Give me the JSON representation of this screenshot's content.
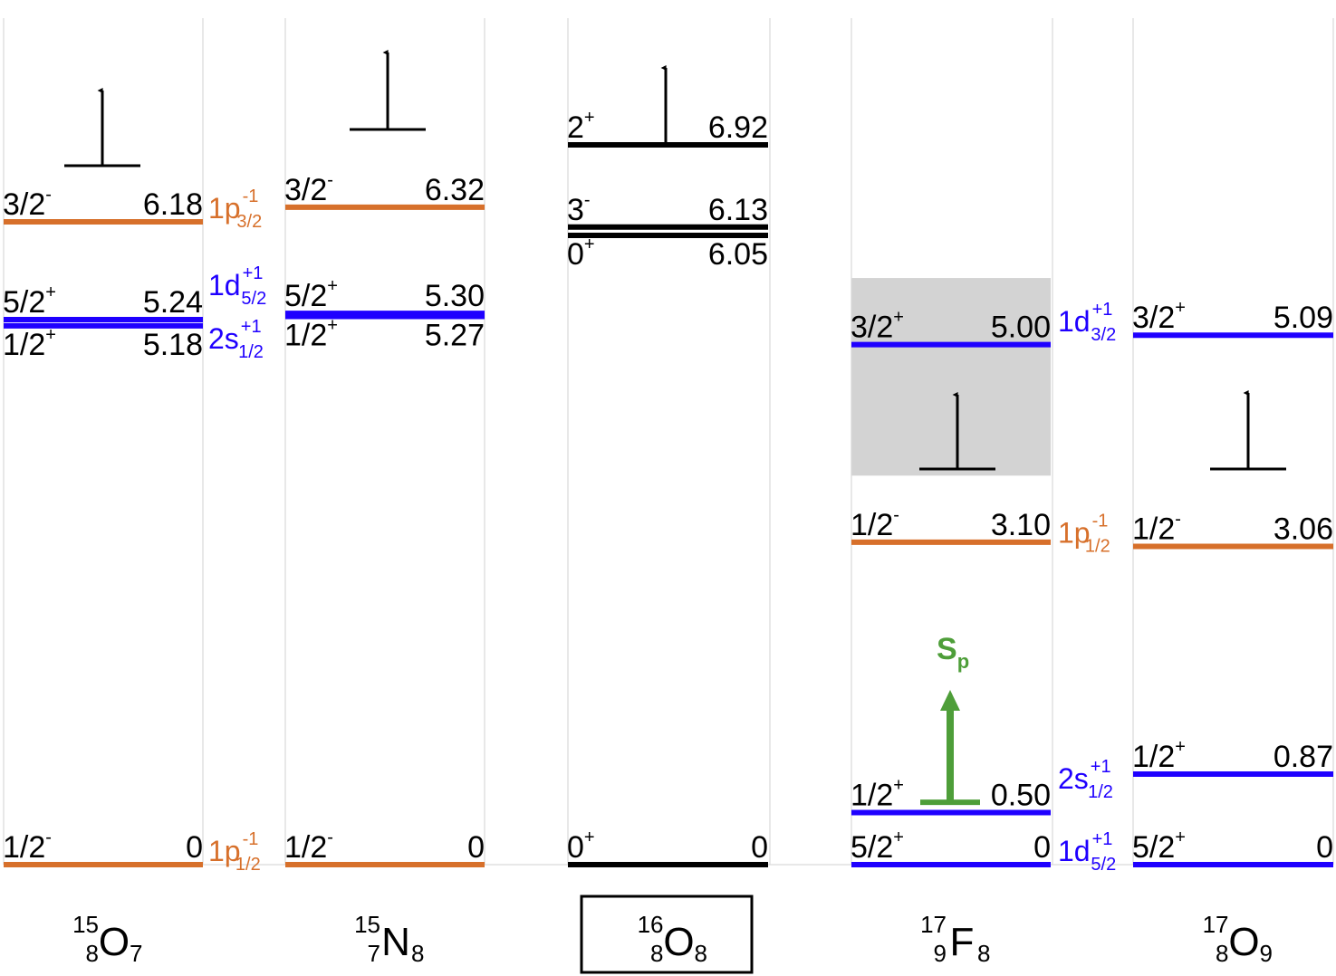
{
  "colors": {
    "particle": "#1f00ff",
    "hole": "#d7702b",
    "neutral": "#000000",
    "sp": "#4e9e39",
    "shade": "#d3d3d3",
    "grid": "#d9d9d9"
  },
  "scale": {
    "max_energy": 6.92
  },
  "panels": [
    {
      "id": "o15",
      "label": {
        "mass": "15",
        "z": "8",
        "symbol": "O",
        "n": "7"
      },
      "levels": [
        {
          "jpi_base": "1/2",
          "jpi_sup": "-",
          "energy": "0",
          "value": 0,
          "kind": "hole"
        },
        {
          "jpi_base": "1/2",
          "jpi_sup": "+",
          "energy": "5.18",
          "value": 5.18,
          "kind": "particle",
          "label_below": true
        },
        {
          "jpi_base": "5/2",
          "jpi_sup": "+",
          "energy": "5.24",
          "value": 5.24,
          "kind": "particle"
        },
        {
          "jpi_base": "3/2",
          "jpi_sup": "-",
          "energy": "6.18",
          "value": 6.18,
          "kind": "hole"
        }
      ],
      "threshold": {
        "kind": "neutral"
      }
    },
    {
      "id": "n15",
      "label": {
        "mass": "15",
        "z": "7",
        "symbol": "N",
        "n": "8"
      },
      "levels": [
        {
          "jpi_base": "1/2",
          "jpi_sup": "-",
          "energy": "0",
          "value": 0,
          "kind": "hole"
        },
        {
          "jpi_base": "1/2",
          "jpi_sup": "+",
          "energy": "5.27",
          "value": 5.27,
          "kind": "particle",
          "label_below": true
        },
        {
          "jpi_base": "5/2",
          "jpi_sup": "+",
          "energy": "5.30",
          "value": 5.3,
          "kind": "particle"
        },
        {
          "jpi_base": "3/2",
          "jpi_sup": "-",
          "energy": "6.32",
          "value": 6.32,
          "kind": "hole"
        }
      ],
      "threshold": {
        "kind": "neutral"
      }
    },
    {
      "id": "o16",
      "label": {
        "mass": "16",
        "z": "8",
        "symbol": "O",
        "n": "8"
      },
      "boxed": true,
      "levels": [
        {
          "jpi_base": "0",
          "jpi_sup": "+",
          "energy": "0",
          "value": 0,
          "kind": "neutral"
        },
        {
          "jpi_base": "0",
          "jpi_sup": "+",
          "energy": "6.05",
          "value": 6.05,
          "kind": "neutral",
          "label_below": true
        },
        {
          "jpi_base": "3",
          "jpi_sup": "-",
          "energy": "6.13",
          "value": 6.13,
          "kind": "neutral"
        },
        {
          "jpi_base": "2",
          "jpi_sup": "+",
          "energy": "6.92",
          "value": 6.92,
          "kind": "neutral"
        }
      ],
      "threshold": {
        "kind": "neutral"
      }
    },
    {
      "id": "f17",
      "label": {
        "mass": "17",
        "z": "9",
        "symbol": "F",
        "n": "8"
      },
      "levels": [
        {
          "jpi_base": "5/2",
          "jpi_sup": "+",
          "energy": "0",
          "value": 0,
          "kind": "particle"
        },
        {
          "jpi_base": "1/2",
          "jpi_sup": "+",
          "energy": "0.50",
          "value": 0.5,
          "kind": "particle"
        },
        {
          "jpi_base": "1/2",
          "jpi_sup": "-",
          "energy": "3.10",
          "value": 3.1,
          "kind": "hole"
        },
        {
          "jpi_base": "3/2",
          "jpi_sup": "+",
          "energy": "5.00",
          "value": 5.0,
          "kind": "particle"
        }
      ],
      "shaded_band": {
        "from": 3.74,
        "to": 5.64
      },
      "threshold": {
        "kind": "neutral"
      },
      "sp_threshold": {
        "label_base": "S",
        "label_sub": "p",
        "value": 0.6
      }
    },
    {
      "id": "o17",
      "label": {
        "mass": "17",
        "z": "8",
        "symbol": "O",
        "n": "9"
      },
      "levels": [
        {
          "jpi_base": "5/2",
          "jpi_sup": "+",
          "energy": "0",
          "value": 0,
          "kind": "particle"
        },
        {
          "jpi_base": "1/2",
          "jpi_sup": "+",
          "energy": "0.87",
          "value": 0.87,
          "kind": "particle"
        },
        {
          "jpi_base": "1/2",
          "jpi_sup": "-",
          "energy": "3.06",
          "value": 3.06,
          "kind": "hole"
        },
        {
          "jpi_base": "3/2",
          "jpi_sup": "+",
          "energy": "5.09",
          "value": 5.09,
          "kind": "particle"
        }
      ],
      "threshold": {
        "kind": "neutral"
      }
    }
  ],
  "orbitals": [
    {
      "between": "o15-n15",
      "main": "1p",
      "sub": "1/2",
      "sup": "-1",
      "kind": "hole",
      "energy": 0
    },
    {
      "between": "o15-n15",
      "main": "2s",
      "sub": "1/2",
      "sup": "+1",
      "kind": "particle",
      "energy": 5.18
    },
    {
      "between": "o15-n15",
      "main": "1d",
      "sub": "5/2",
      "sup": "+1",
      "kind": "particle",
      "energy": 5.24
    },
    {
      "between": "o15-n15",
      "main": "1p",
      "sub": "3/2",
      "sup": "-1",
      "kind": "hole",
      "energy": 6.18
    },
    {
      "between": "f17-o17",
      "main": "1d",
      "sub": "5/2",
      "sup": "+1",
      "kind": "particle",
      "energy": 0
    },
    {
      "between": "f17-o17",
      "main": "2s",
      "sub": "1/2",
      "sup": "+1",
      "kind": "particle",
      "energy": 0.87
    },
    {
      "between": "f17-o17",
      "main": "1p",
      "sub": "1/2",
      "sup": "-1",
      "kind": "hole",
      "energy": 3.06
    },
    {
      "between": "f17-o17",
      "main": "1d",
      "sub": "3/2",
      "sup": "+1",
      "kind": "particle",
      "energy": 5.09
    }
  ]
}
